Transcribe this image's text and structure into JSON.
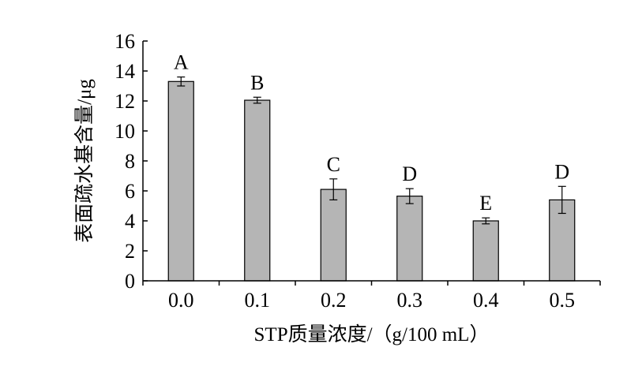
{
  "chart_data": {
    "type": "bar",
    "title": "",
    "xlabel": "STP质量浓度/（g/100 mL）",
    "ylabel": "表面疏水基含量/μg",
    "categories": [
      "0.0",
      "0.1",
      "0.2",
      "0.3",
      "0.4",
      "0.5"
    ],
    "values": [
      13.3,
      12.05,
      6.1,
      5.65,
      4.0,
      5.4
    ],
    "errors": [
      0.3,
      0.2,
      0.7,
      0.5,
      0.2,
      0.9
    ],
    "significance": [
      "A",
      "B",
      "C",
      "D",
      "E",
      "D"
    ],
    "ylim": [
      0,
      16
    ],
    "yticks": [
      0,
      2,
      4,
      6,
      8,
      10,
      12,
      14,
      16
    ],
    "grid": false,
    "legend": "none",
    "bar_color": "#b5b5b5",
    "axis_color": "#000000"
  }
}
